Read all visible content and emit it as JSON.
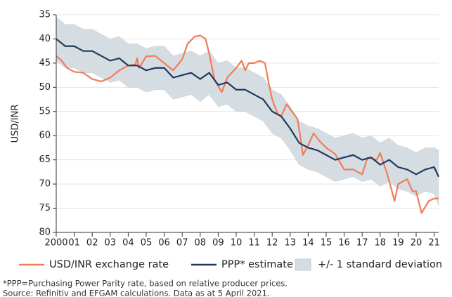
{
  "chart_data": {
    "type": "line",
    "y_label": "USD/INR",
    "y_inverted": true,
    "grid": true,
    "legend": "bottom",
    "xlim": [
      2000,
      2021.25
    ],
    "xticks": [
      {
        "value": 2000,
        "label": "2000"
      },
      {
        "value": 2001,
        "label": "01"
      },
      {
        "value": 2002,
        "label": "02"
      },
      {
        "value": 2003,
        "label": "03"
      },
      {
        "value": 2004,
        "label": "04"
      },
      {
        "value": 2005,
        "label": "05"
      },
      {
        "value": 2006,
        "label": "06"
      },
      {
        "value": 2007,
        "label": "07"
      },
      {
        "value": 2008,
        "label": "08"
      },
      {
        "value": 2009,
        "label": "09"
      },
      {
        "value": 2010,
        "label": "10"
      },
      {
        "value": 2011,
        "label": "11"
      },
      {
        "value": 2012,
        "label": "12"
      },
      {
        "value": 2013,
        "label": "13"
      },
      {
        "value": 2014,
        "label": "14"
      },
      {
        "value": 2015,
        "label": "15"
      },
      {
        "value": 2016,
        "label": "16"
      },
      {
        "value": 2017,
        "label": "17"
      },
      {
        "value": 2018,
        "label": "18"
      },
      {
        "value": 2019,
        "label": "19"
      },
      {
        "value": 2020,
        "label": "20"
      },
      {
        "value": 2021,
        "label": "21"
      }
    ],
    "ylim": [
      35,
      80
    ],
    "yticks": [
      35,
      40,
      45,
      50,
      55,
      60,
      65,
      70,
      75,
      80
    ],
    "series": [
      {
        "name": "USD/INR exchange rate",
        "color": "#f07c5a",
        "x": [
          2000,
          2000.3,
          2000.6,
          2001,
          2001.5,
          2002,
          2002.5,
          2003,
          2003.5,
          2004,
          2004.4,
          2004.5,
          2004.6,
          2005,
          2005.5,
          2006,
          2006.5,
          2007,
          2007.3,
          2007.7,
          2008,
          2008.3,
          2008.5,
          2008.8,
          2009.2,
          2009.5,
          2010,
          2010.3,
          2010.5,
          2010.7,
          2011,
          2011.3,
          2011.6,
          2011.8,
          2012,
          2012.3,
          2012.5,
          2012.8,
          2013,
          2013.4,
          2013.6,
          2013.7,
          2014,
          2014.3,
          2014.6,
          2015,
          2015.5,
          2016,
          2016.5,
          2017,
          2017.3,
          2017.8,
          2018,
          2018.4,
          2018.8,
          2019,
          2019.5,
          2019.8,
          2020,
          2020.3,
          2020.7,
          2021,
          2021.25
        ],
        "values": [
          43.5,
          44.5,
          46,
          46.8,
          47,
          48.3,
          48.8,
          48,
          46.5,
          45.5,
          45.3,
          44,
          46,
          43.6,
          43.5,
          45,
          46.5,
          44.2,
          41,
          39.5,
          39.3,
          40,
          43,
          48.5,
          51,
          48,
          46,
          44.5,
          46.5,
          45,
          45,
          44.5,
          45,
          49,
          52.5,
          55.5,
          56,
          53.5,
          54.5,
          56.5,
          61,
          64,
          62,
          59.5,
          61,
          62.5,
          63.8,
          67,
          67,
          68,
          64.5,
          65,
          63.6,
          68,
          73.5,
          70,
          69,
          71.5,
          71.5,
          76,
          73.5,
          73,
          73
        ]
      },
      {
        "name": "PPP* estimate",
        "color": "#1f3a5f",
        "x": [
          2000,
          2000.5,
          2001,
          2001.5,
          2002,
          2002.5,
          2003,
          2003.5,
          2004,
          2004.5,
          2005,
          2005.5,
          2006,
          2006.5,
          2007,
          2007.5,
          2008,
          2008.5,
          2009,
          2009.5,
          2010,
          2010.5,
          2011,
          2011.5,
          2012,
          2012.5,
          2013,
          2013.5,
          2014,
          2014.5,
          2015,
          2015.5,
          2016,
          2016.5,
          2017,
          2017.5,
          2018,
          2018.5,
          2019,
          2019.5,
          2020,
          2020.5,
          2021,
          2021.25
        ],
        "values": [
          40,
          41.5,
          41.5,
          42.5,
          42.5,
          43.5,
          44.5,
          44,
          45.5,
          45.5,
          46.5,
          46,
          46,
          48,
          47.5,
          47,
          48.3,
          47,
          49.5,
          49,
          50.5,
          50.5,
          51.5,
          52.5,
          55,
          56,
          58.5,
          61.5,
          62.5,
          63,
          64,
          65,
          64.5,
          64,
          65,
          64.5,
          66,
          65,
          66.5,
          67,
          68,
          67,
          66.5,
          68.5
        ]
      },
      {
        "name": "+/- 1 standard deviation",
        "color": "#d5dde3",
        "x": [
          2000,
          2000.5,
          2001,
          2001.5,
          2002,
          2002.5,
          2003,
          2003.5,
          2004,
          2004.5,
          2005,
          2005.5,
          2006,
          2006.5,
          2007,
          2007.5,
          2008,
          2008.5,
          2009,
          2009.5,
          2010,
          2010.5,
          2011,
          2011.5,
          2012,
          2012.5,
          2013,
          2013.5,
          2014,
          2014.5,
          2015,
          2015.5,
          2016,
          2016.5,
          2017,
          2017.5,
          2018,
          2018.5,
          2019,
          2019.5,
          2020,
          2020.5,
          2021,
          2021.25
        ],
        "low": [
          35.5,
          37,
          37,
          38,
          38,
          39,
          40,
          39.5,
          41,
          41,
          42,
          41.5,
          41.5,
          43.5,
          43,
          42.5,
          43.5,
          42.5,
          45,
          44.5,
          46,
          46,
          47,
          48,
          50.5,
          51.5,
          54,
          57,
          58,
          58.5,
          59.5,
          60.5,
          60,
          59.5,
          60.5,
          60,
          61.5,
          60.5,
          62,
          62.5,
          63.5,
          62.5,
          62.5,
          63
        ],
        "high": [
          44.5,
          46,
          46,
          47,
          47,
          48,
          49,
          48.5,
          50,
          50,
          51,
          50.5,
          50.5,
          52.5,
          52,
          51.5,
          53,
          51.5,
          54,
          53.5,
          55,
          55,
          56,
          57,
          59.5,
          60.5,
          63,
          66,
          67,
          67.5,
          68.5,
          69.5,
          69,
          68.5,
          69.5,
          69,
          70.5,
          69.5,
          71,
          71.5,
          72.5,
          71.5,
          72,
          74.5
        ]
      }
    ],
    "notes": [
      "*PPP=Purchasing Power Parity rate, based on relative producer prices.",
      "Source: Refinitiv and EFGAM calculations. Data as at 5 April 2021."
    ]
  }
}
